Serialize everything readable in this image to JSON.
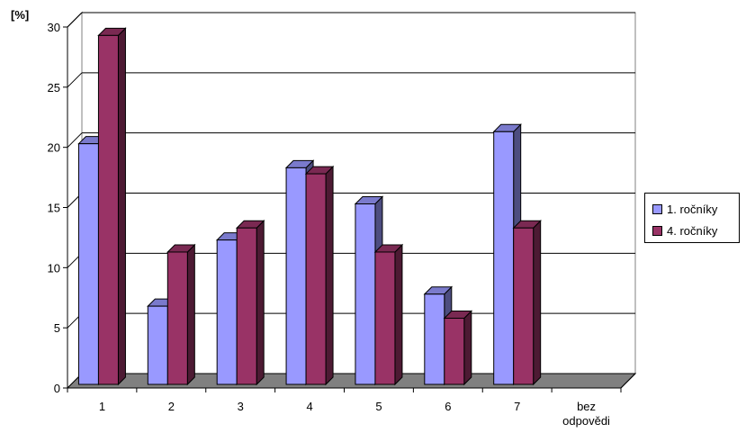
{
  "chart_data": {
    "type": "bar",
    "ylabel": "[%]",
    "ylim": [
      0,
      30
    ],
    "yticks": [
      0,
      5,
      10,
      15,
      20,
      25,
      30
    ],
    "categories": [
      "1",
      "2",
      "3",
      "4",
      "5",
      "6",
      "7",
      "bez odpovědi"
    ],
    "series": [
      {
        "name": "1. ročníky",
        "values": [
          20,
          6.5,
          12,
          18,
          15,
          7.5,
          21,
          0
        ],
        "color": "#9999ff"
      },
      {
        "name": "4. ročníky",
        "values": [
          29,
          11,
          13,
          17.5,
          11,
          5.5,
          13,
          0
        ],
        "color": "#993366"
      }
    ],
    "grid": true,
    "legend": "right"
  }
}
